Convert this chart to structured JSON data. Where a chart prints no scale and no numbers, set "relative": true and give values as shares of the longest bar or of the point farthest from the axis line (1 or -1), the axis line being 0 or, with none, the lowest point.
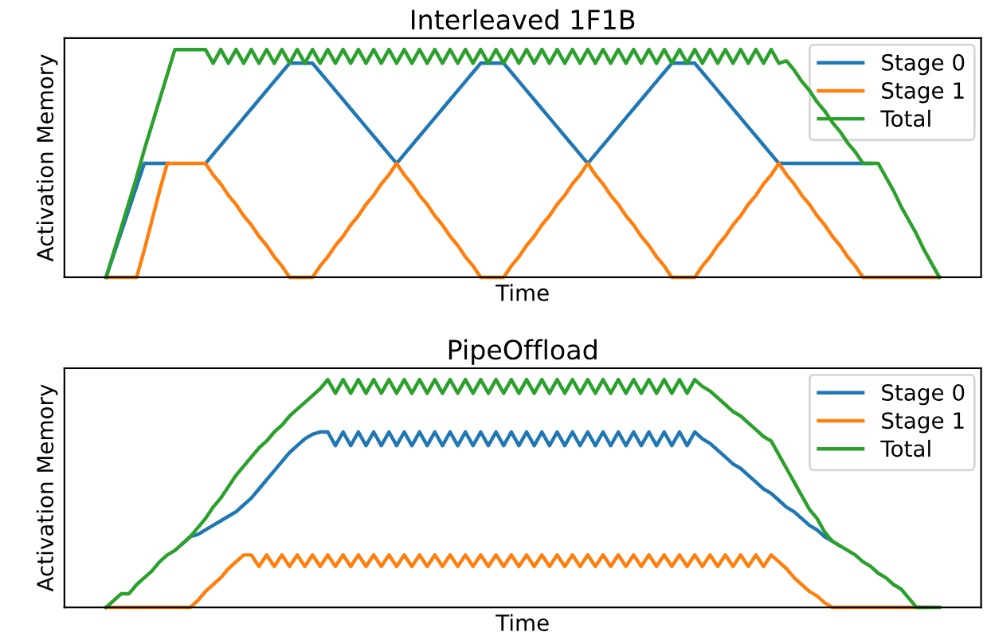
{
  "chart_data": [
    {
      "type": "line",
      "title": "Interleaved 1F1B",
      "xlabel": "Time",
      "ylabel": "Activation Memory",
      "relative": true,
      "legend": "top right",
      "tick_labels": false,
      "categories": [
        null,
        null,
        null,
        null,
        null,
        null,
        null,
        null,
        null,
        null,
        null,
        null,
        null,
        null,
        null,
        null,
        null,
        null,
        null,
        null,
        null,
        null,
        null,
        null,
        null,
        null,
        null,
        null,
        null,
        null,
        null,
        null,
        null,
        null,
        null,
        null,
        null,
        null,
        null,
        null,
        null,
        null,
        null,
        null,
        null,
        null,
        null,
        null,
        null,
        null,
        null,
        null,
        null,
        null,
        null,
        null,
        null,
        null,
        null,
        null,
        null,
        null,
        null,
        null,
        null,
        null,
        null,
        null,
        null,
        null,
        null,
        null,
        null,
        null,
        null,
        null,
        null,
        null,
        null,
        null,
        null,
        null,
        null,
        null,
        null,
        null,
        null,
        null,
        null,
        null,
        null,
        null,
        null,
        null,
        null,
        null,
        null,
        null,
        null,
        null,
        null,
        null,
        null,
        null,
        null,
        null,
        null,
        null,
        null,
        null
      ],
      "series": [
        {
          "name": "Stage 0",
          "color": "#1f77b4",
          "values": [
            0,
            0.1,
            0.2,
            0.3,
            0.4,
            0.5,
            0.5,
            0.5,
            0.5,
            null,
            null,
            null,
            null,
            0.5,
            0.54,
            0.58,
            0.62,
            0.66,
            0.7,
            0.74,
            0.78,
            0.82,
            0.86,
            0.9,
            0.94,
            0.94,
            0.94,
            0.94,
            0.9,
            0.86,
            0.82,
            0.78,
            0.74,
            0.7,
            0.66,
            0.62,
            0.58,
            0.54,
            0.5,
            0.54,
            0.58,
            0.62,
            0.66,
            0.7,
            0.74,
            0.78,
            0.82,
            0.86,
            0.9,
            0.94,
            0.94,
            0.94,
            0.94,
            0.9,
            0.86,
            0.82,
            0.78,
            0.74,
            0.7,
            0.66,
            0.62,
            0.58,
            0.54,
            0.5,
            0.54,
            0.58,
            0.62,
            0.66,
            0.7,
            0.74,
            0.78,
            0.82,
            0.86,
            0.9,
            0.94,
            0.94,
            0.94,
            0.94,
            0.9,
            0.86,
            0.82,
            0.78,
            0.74,
            0.7,
            0.66,
            0.62,
            0.58,
            0.54,
            0.5,
            0.5,
            0.5,
            0.5,
            0.5,
            0.5,
            0.5,
            0.5,
            0.5,
            0.5,
            0.5,
            0.5,
            0.5,
            null,
            null,
            null,
            null,
            null,
            null,
            null,
            null,
            null
          ]
        },
        {
          "name": "Stage 1",
          "color": "#ff7f0e",
          "values": [
            0,
            0,
            0,
            0,
            0,
            0.12,
            0.25,
            0.38,
            0.5,
            0.5,
            0.5,
            0.5,
            0.5,
            0.5,
            0.45,
            0.41,
            0.36,
            0.32,
            0.27,
            0.23,
            0.18,
            0.14,
            0.09,
            0.05,
            0,
            0,
            0,
            0,
            0.05,
            0.09,
            0.14,
            0.18,
            0.23,
            0.27,
            0.32,
            0.36,
            0.41,
            0.45,
            0.5,
            0.45,
            0.41,
            0.36,
            0.32,
            0.27,
            0.23,
            0.18,
            0.14,
            0.09,
            0.05,
            0,
            0,
            0,
            0,
            0.05,
            0.09,
            0.14,
            0.18,
            0.23,
            0.27,
            0.32,
            0.36,
            0.41,
            0.45,
            0.5,
            0.45,
            0.41,
            0.36,
            0.32,
            0.27,
            0.23,
            0.18,
            0.14,
            0.09,
            0.05,
            0,
            0,
            0,
            0,
            0.05,
            0.09,
            0.14,
            0.18,
            0.23,
            0.27,
            0.32,
            0.36,
            0.41,
            0.45,
            0.5,
            0.45,
            0.41,
            0.36,
            0.32,
            0.27,
            0.23,
            0.18,
            0.14,
            0.09,
            0.05,
            0,
            0,
            0,
            0,
            0,
            0,
            0,
            0,
            0,
            0,
            0
          ]
        },
        {
          "name": "Total",
          "color": "#2ca02c",
          "values": [
            0,
            0.11,
            0.22,
            0.33,
            0.44,
            0.56,
            0.67,
            0.78,
            0.89,
            1,
            1,
            1,
            1,
            1,
            0.94,
            1,
            0.94,
            1,
            0.94,
            1,
            0.94,
            1,
            0.94,
            1,
            0.94,
            1,
            0.94,
            1,
            0.94,
            1,
            0.94,
            1,
            0.94,
            1,
            0.94,
            1,
            0.94,
            1,
            0.94,
            1,
            0.94,
            1,
            0.94,
            1,
            0.94,
            1,
            0.94,
            1,
            0.94,
            1,
            0.94,
            1,
            0.94,
            1,
            0.94,
            1,
            0.94,
            1,
            0.94,
            1,
            0.94,
            1,
            0.94,
            1,
            0.94,
            1,
            0.94,
            1,
            0.94,
            1,
            0.94,
            1,
            0.94,
            1,
            0.94,
            1,
            0.94,
            1,
            0.94,
            1,
            0.94,
            1,
            0.94,
            1,
            0.94,
            1,
            0.94,
            1,
            0.94,
            0.95,
            0.91,
            0.86,
            0.82,
            0.77,
            0.73,
            0.68,
            0.64,
            0.59,
            0.55,
            0.5,
            0.5,
            0.5,
            0.44,
            0.38,
            0.31,
            0.25,
            0.19,
            0.12,
            0.06,
            0
          ]
        }
      ]
    },
    {
      "type": "line",
      "title": "PipeOffload",
      "xlabel": "Time",
      "ylabel": "Activation Memory",
      "relative": true,
      "legend": "top right",
      "tick_labels": false,
      "categories": [
        null,
        null,
        null,
        null,
        null,
        null,
        null,
        null,
        null,
        null,
        null,
        null,
        null,
        null,
        null,
        null,
        null,
        null,
        null,
        null,
        null,
        null,
        null,
        null,
        null,
        null,
        null,
        null,
        null,
        null,
        null,
        null,
        null,
        null,
        null,
        null,
        null,
        null,
        null,
        null,
        null,
        null,
        null,
        null,
        null,
        null,
        null,
        null,
        null,
        null,
        null,
        null,
        null,
        null,
        null,
        null,
        null,
        null,
        null,
        null,
        null,
        null,
        null,
        null,
        null,
        null,
        null,
        null,
        null,
        null,
        null,
        null,
        null,
        null,
        null,
        null,
        null,
        null,
        null,
        null,
        null,
        null,
        null,
        null,
        null,
        null,
        null,
        null,
        null,
        null,
        null,
        null,
        null,
        null,
        null,
        null,
        null,
        null,
        null,
        null,
        null,
        null,
        null,
        null,
        null,
        null,
        null,
        null,
        null,
        null
      ],
      "series": [
        {
          "name": "Stage 0",
          "color": "#1f77b4",
          "values": [
            null,
            null,
            null,
            null,
            null,
            null,
            null,
            null,
            null,
            null,
            0.28,
            0.31,
            0.32,
            0.34,
            0.36,
            0.38,
            0.4,
            0.42,
            0.45,
            0.48,
            0.52,
            0.56,
            0.6,
            0.64,
            0.68,
            0.71,
            0.74,
            0.76,
            0.77,
            0.77,
            0.71,
            0.77,
            0.71,
            0.77,
            0.71,
            0.77,
            0.71,
            0.77,
            0.71,
            0.77,
            0.71,
            0.77,
            0.71,
            0.77,
            0.71,
            0.77,
            0.71,
            0.77,
            0.71,
            0.77,
            0.71,
            0.77,
            0.71,
            0.77,
            0.71,
            0.77,
            0.71,
            0.77,
            0.71,
            0.77,
            0.71,
            0.77,
            0.71,
            0.77,
            0.71,
            0.77,
            0.71,
            0.77,
            0.71,
            0.77,
            0.71,
            0.77,
            0.71,
            0.77,
            0.71,
            0.77,
            0.71,
            0.77,
            0.74,
            0.72,
            0.69,
            0.66,
            0.63,
            0.61,
            0.58,
            0.55,
            0.52,
            0.5,
            0.47,
            0.44,
            0.42,
            0.39,
            0.36,
            0.34,
            0.31,
            0.29,
            0.27,
            null,
            null,
            null,
            null,
            null,
            null,
            null,
            null,
            null,
            null,
            null,
            null,
            null
          ]
        },
        {
          "name": "Stage 1",
          "color": "#ff7f0e",
          "values": [
            0,
            0,
            0,
            0,
            0,
            0,
            0,
            0,
            0,
            0,
            0,
            0,
            0.03,
            0.07,
            0.1,
            0.13,
            0.17,
            0.2,
            0.23,
            0.23,
            0.18,
            0.23,
            0.18,
            0.23,
            0.18,
            0.23,
            0.18,
            0.23,
            0.18,
            0.23,
            0.18,
            0.23,
            0.18,
            0.23,
            0.18,
            0.23,
            0.18,
            0.23,
            0.18,
            0.23,
            0.18,
            0.23,
            0.18,
            0.23,
            0.18,
            0.23,
            0.18,
            0.23,
            0.18,
            0.23,
            0.18,
            0.23,
            0.18,
            0.23,
            0.18,
            0.23,
            0.18,
            0.23,
            0.18,
            0.23,
            0.18,
            0.23,
            0.18,
            0.23,
            0.18,
            0.23,
            0.18,
            0.23,
            0.18,
            0.23,
            0.18,
            0.23,
            0.18,
            0.23,
            0.18,
            0.23,
            0.18,
            0.23,
            0.18,
            0.23,
            0.18,
            0.23,
            0.18,
            0.23,
            0.18,
            0.23,
            0.18,
            0.23,
            0.2,
            0.17,
            0.13,
            0.1,
            0.07,
            0.05,
            0.02,
            0,
            0,
            0,
            0,
            0,
            0,
            0,
            0,
            0,
            0,
            0,
            0,
            0,
            null,
            null
          ]
        },
        {
          "name": "Total",
          "color": "#2ca02c",
          "values": [
            0,
            0.03,
            0.06,
            0.06,
            0.1,
            0.13,
            0.16,
            0.2,
            0.23,
            0.25,
            0.28,
            0.31,
            0.35,
            0.39,
            0.44,
            0.48,
            0.53,
            0.58,
            0.62,
            0.66,
            0.7,
            0.73,
            0.77,
            0.8,
            0.84,
            0.87,
            0.9,
            0.93,
            0.96,
            1,
            0.94,
            1,
            0.94,
            1,
            0.94,
            1,
            0.94,
            1,
            0.94,
            1,
            0.94,
            1,
            0.94,
            1,
            0.94,
            1,
            0.94,
            1,
            0.94,
            1,
            0.94,
            1,
            0.94,
            1,
            0.94,
            1,
            0.94,
            1,
            0.94,
            1,
            0.94,
            1,
            0.94,
            1,
            0.94,
            1,
            0.94,
            1,
            0.94,
            1,
            0.94,
            1,
            0.94,
            1,
            0.94,
            1,
            0.94,
            1,
            0.97,
            0.95,
            0.92,
            0.89,
            0.86,
            0.84,
            0.81,
            0.78,
            0.75,
            0.73,
            0.67,
            0.61,
            0.55,
            0.49,
            0.43,
            0.39,
            0.33,
            0.29,
            0.27,
            0.25,
            0.23,
            0.2,
            0.18,
            0.15,
            0.13,
            0.1,
            0.08,
            0.04,
            0,
            0,
            0,
            0
          ]
        }
      ]
    }
  ]
}
